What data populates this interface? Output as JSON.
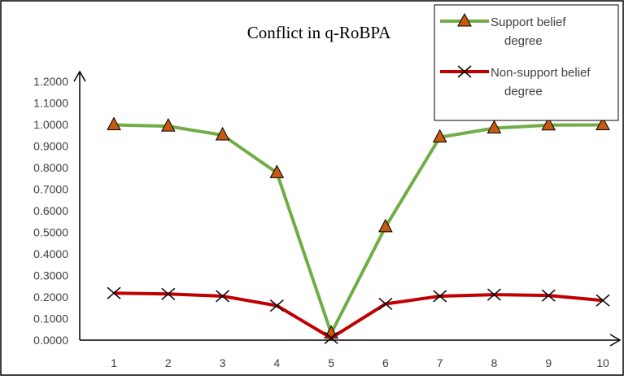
{
  "chart_data": {
    "type": "line",
    "title": "Conflict in q-RoBPA",
    "xlabel": "",
    "ylabel": "",
    "categories": [
      "1",
      "2",
      "3",
      "4",
      "5",
      "6",
      "7",
      "8",
      "9",
      "10"
    ],
    "y_tick_labels": [
      "0.0000",
      "0.1000",
      "0.2000",
      "0.3000",
      "0.4000",
      "0.5000",
      "0.6000",
      "0.7000",
      "0.8000",
      "0.9000",
      "1.0000",
      "1.1000",
      "1.2000"
    ],
    "ylim": [
      0,
      1.2
    ],
    "grid": false,
    "legend_position": "top-right",
    "series": [
      {
        "name": "Support belief degree",
        "legend_lines": [
          "Support belief",
          "degree"
        ],
        "color": "#70AD47",
        "marker": "triangle",
        "marker_color": "#C55A11",
        "values": [
          0.998,
          0.992,
          0.951,
          0.776,
          0.032,
          0.525,
          0.941,
          0.983,
          0.997,
          0.998
        ]
      },
      {
        "name": "Non-support belief degree",
        "legend_lines": [
          "Non-support belief",
          "degree"
        ],
        "color": "#C00000",
        "marker": "x",
        "marker_color": "#000000",
        "values": [
          0.218,
          0.214,
          0.204,
          0.16,
          0.01,
          0.168,
          0.204,
          0.211,
          0.207,
          0.184
        ]
      }
    ]
  }
}
